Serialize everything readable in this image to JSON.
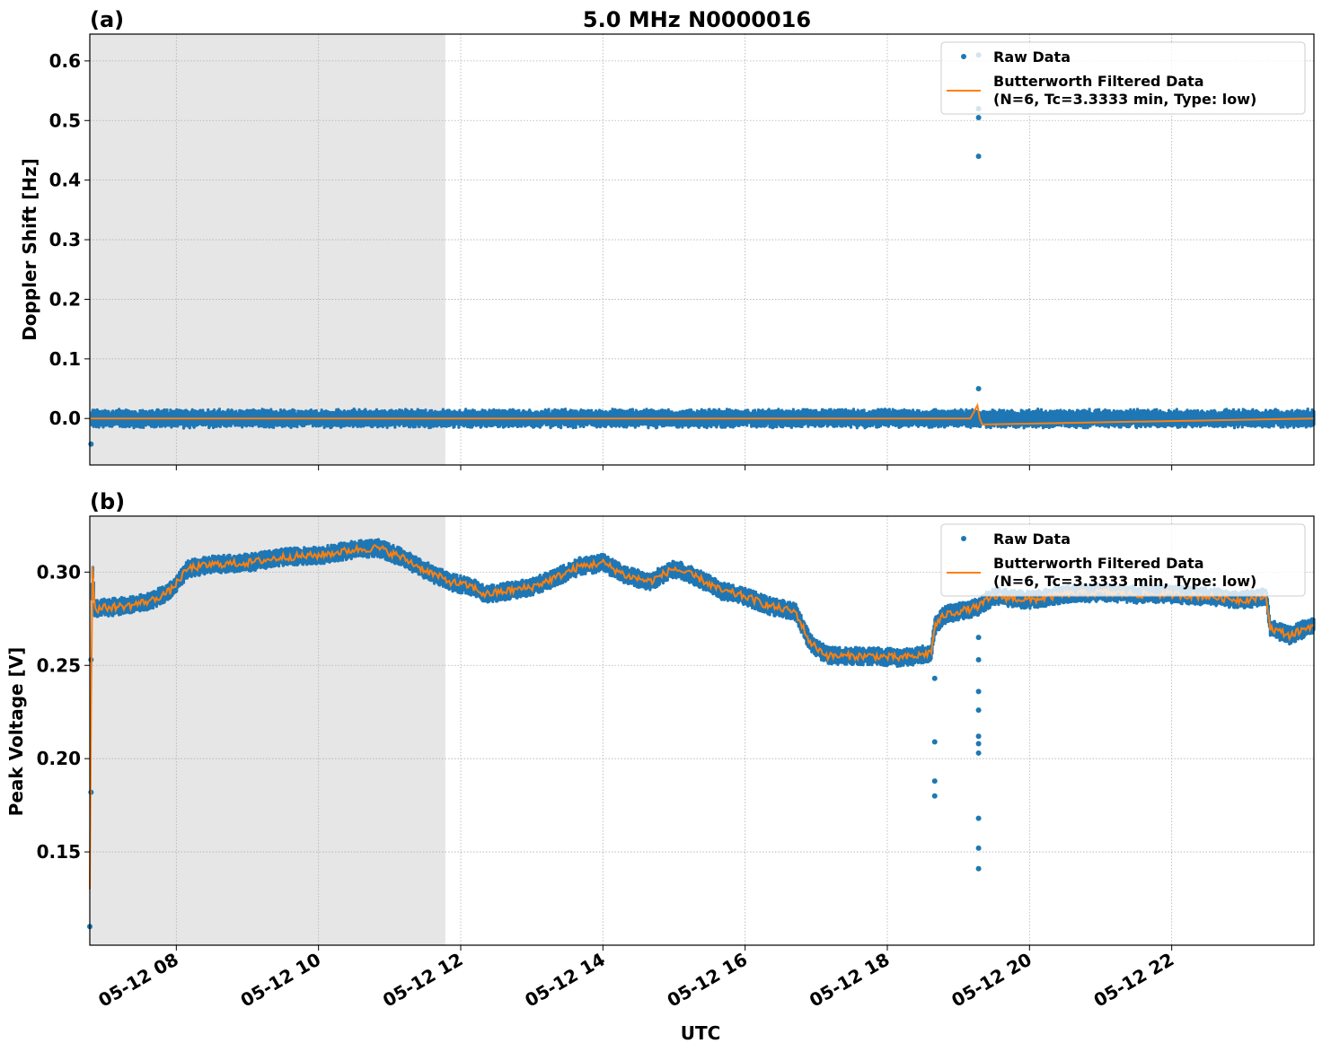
{
  "figure": {
    "title": "5.0 MHz N0000016",
    "xlabel": "UTC"
  },
  "colors": {
    "raw": "#1f77b4",
    "filtered": "#ff7f0e",
    "night_shade": "#e6e6e6",
    "grid": "#b0b0b0"
  },
  "legend": {
    "raw_label": "Raw Data",
    "filtered_label_line1": "Butterworth Filtered Data",
    "filtered_label_line2": "(N=6, Tc=3.3333 min, Type: low)",
    "placement": "top-right"
  },
  "chart_data": [
    {
      "type": "line",
      "panel_label": "(a)",
      "ylabel": "Doppler Shift [Hz]",
      "xlim": [
        "05-12 06:47",
        "05-12 24:00"
      ],
      "ylim": [
        -0.078,
        0.645
      ],
      "yticks": [
        0.0,
        0.1,
        0.2,
        0.3,
        0.4,
        0.5,
        0.6
      ],
      "ytick_labels": [
        "0.0",
        "0.1",
        "0.2",
        "0.3",
        "0.4",
        "0.5",
        "0.6"
      ],
      "grid": true,
      "shaded_interval": [
        "05-12 06:47",
        "05-12 11:47"
      ],
      "series": [
        {
          "name": "Raw Data",
          "style": "dots",
          "band_center": 0.0,
          "band_halfwidth": 0.012,
          "outliers": [
            {
              "x": "05-12 06:48",
              "y": -0.043
            },
            {
              "x": "05-12 19:17",
              "y": 0.05
            },
            {
              "x": "05-12 19:17",
              "y": 0.44
            },
            {
              "x": "05-12 19:17",
              "y": 0.505
            },
            {
              "x": "05-12 19:17",
              "y": 0.52
            },
            {
              "x": "05-12 19:17",
              "y": 0.61
            }
          ]
        },
        {
          "name": "Butterworth Filtered Data (N=6, Tc=3.3333 min, Type: low)",
          "style": "line",
          "x": [
            "05-12 06:47",
            "05-12 19:10",
            "05-12 19:16",
            "05-12 19:18",
            "05-12 19:20",
            "05-12 24:00"
          ],
          "y": [
            0.0,
            0.0,
            0.022,
            0.0,
            -0.01,
            0.0
          ]
        }
      ]
    },
    {
      "type": "line",
      "panel_label": "(b)",
      "ylabel": "Peak Voltage [V]",
      "xlim": [
        "05-12 06:47",
        "05-12 24:00"
      ],
      "ylim": [
        0.1,
        0.33
      ],
      "yticks": [
        0.15,
        0.2,
        0.25,
        0.3
      ],
      "ytick_labels": [
        "0.15",
        "0.20",
        "0.25",
        "0.30"
      ],
      "xticks": [
        "05-12 08",
        "05-12 10",
        "05-12 12",
        "05-12 14",
        "05-12 16",
        "05-12 18",
        "05-12 20",
        "05-12 22"
      ],
      "grid": true,
      "shaded_interval": [
        "05-12 06:47",
        "05-12 11:47"
      ],
      "series": [
        {
          "name": "Raw Data",
          "style": "dots",
          "band_halfwidth": 0.004,
          "outliers": [
            {
              "x": "05-12 06:47",
              "y": 0.11
            },
            {
              "x": "05-12 06:48",
              "y": 0.182
            },
            {
              "x": "05-12 06:48",
              "y": 0.253
            },
            {
              "x": "05-12 18:40",
              "y": 0.18
            },
            {
              "x": "05-12 18:40",
              "y": 0.188
            },
            {
              "x": "05-12 18:40",
              "y": 0.209
            },
            {
              "x": "05-12 18:40",
              "y": 0.243
            },
            {
              "x": "05-12 19:17",
              "y": 0.141
            },
            {
              "x": "05-12 19:17",
              "y": 0.152
            },
            {
              "x": "05-12 19:17",
              "y": 0.168
            },
            {
              "x": "05-12 19:17",
              "y": 0.203
            },
            {
              "x": "05-12 19:17",
              "y": 0.208
            },
            {
              "x": "05-12 19:17",
              "y": 0.212
            },
            {
              "x": "05-12 19:17",
              "y": 0.226
            },
            {
              "x": "05-12 19:17",
              "y": 0.236
            },
            {
              "x": "05-12 19:17",
              "y": 0.253
            },
            {
              "x": "05-12 19:17",
              "y": 0.265
            }
          ]
        },
        {
          "name": "Butterworth Filtered Data (N=6, Tc=3.3333 min, Type: low)",
          "style": "line",
          "x": [
            "05-12 06:47",
            "05-12 06:49",
            "05-12 06:51",
            "05-12 07:00",
            "05-12 07:20",
            "05-12 07:40",
            "05-12 07:55",
            "05-12 08:10",
            "05-12 08:30",
            "05-12 09:00",
            "05-12 09:30",
            "05-12 10:00",
            "05-12 10:30",
            "05-12 10:50",
            "05-12 11:10",
            "05-12 11:30",
            "05-12 11:50",
            "05-12 12:10",
            "05-12 12:20",
            "05-12 12:40",
            "05-12 13:00",
            "05-12 13:20",
            "05-12 13:40",
            "05-12 14:00",
            "05-12 14:20",
            "05-12 14:40",
            "05-12 15:00",
            "05-12 15:20",
            "05-12 15:40",
            "05-12 16:00",
            "05-12 16:20",
            "05-12 16:40",
            "05-12 16:43",
            "05-12 16:55",
            "05-12 17:10",
            "05-12 17:30",
            "05-12 17:50",
            "05-12 18:10",
            "05-12 18:25",
            "05-12 18:37",
            "05-12 18:40",
            "05-12 18:48",
            "05-12 19:00",
            "05-12 19:15",
            "05-12 19:30",
            "05-12 20:00",
            "05-12 20:30",
            "05-12 21:00",
            "05-12 21:30",
            "05-12 22:00",
            "05-12 22:30",
            "05-12 23:00",
            "05-12 23:20",
            "05-12 23:23",
            "05-12 23:40",
            "05-12 24:00"
          ],
          "y": [
            0.13,
            0.307,
            0.28,
            0.281,
            0.282,
            0.285,
            0.29,
            0.302,
            0.304,
            0.305,
            0.308,
            0.309,
            0.312,
            0.313,
            0.308,
            0.301,
            0.295,
            0.292,
            0.288,
            0.29,
            0.292,
            0.297,
            0.303,
            0.305,
            0.298,
            0.295,
            0.302,
            0.297,
            0.29,
            0.287,
            0.282,
            0.279,
            0.278,
            0.262,
            0.255,
            0.255,
            0.255,
            0.254,
            0.255,
            0.257,
            0.271,
            0.277,
            0.279,
            0.281,
            0.287,
            0.285,
            0.288,
            0.289,
            0.288,
            0.288,
            0.287,
            0.285,
            0.287,
            0.27,
            0.266,
            0.272
          ]
        }
      ]
    }
  ]
}
